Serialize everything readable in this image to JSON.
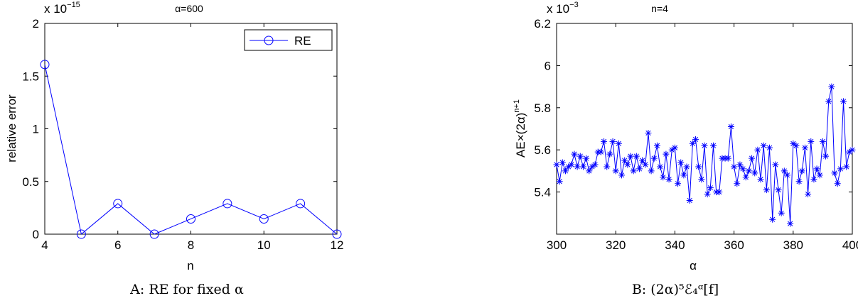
{
  "chart_data": [
    {
      "type": "line",
      "title": "α=600",
      "xlabel": "n",
      "ylabel": "relative error",
      "xlim": [
        4,
        12
      ],
      "ylim": [
        0,
        2
      ],
      "y_scale_label": "x 10",
      "y_scale_exp": "−15",
      "xticks": [
        "4",
        "6",
        "8",
        "10",
        "12"
      ],
      "yticks": [
        "0",
        "0.5",
        "1",
        "1.5",
        "2"
      ],
      "legend": {
        "label": "RE",
        "position": "top-right"
      },
      "marker": "circle",
      "color": "#0000ff",
      "series": [
        {
          "name": "RE",
          "x": [
            4,
            5,
            6,
            7,
            8,
            9,
            10,
            11,
            12
          ],
          "y": [
            1.61,
            0,
            0.29,
            0,
            0.145,
            0.29,
            0.145,
            0.29,
            0
          ]
        }
      ],
      "caption": "A:  RE for fixed α"
    },
    {
      "type": "line",
      "title": "n=4",
      "xlabel": "α",
      "ylabel": "AE×(2α)",
      "ylabel_sup": "n+1",
      "xlim": [
        300,
        400
      ],
      "ylim": [
        5.2,
        6.2
      ],
      "y_scale_label": "x 10",
      "y_scale_exp": "−3",
      "xticks": [
        "300",
        "320",
        "340",
        "360",
        "380",
        "400"
      ],
      "yticks": [
        "5.4",
        "5.6",
        "5.8",
        "6",
        "6.2"
      ],
      "marker": "asterisk",
      "color": "#0000ff",
      "series": [
        {
          "x": [
            300,
            301,
            302,
            303,
            304,
            305,
            306,
            307,
            308,
            309,
            310,
            311,
            312,
            313,
            314,
            315,
            316,
            317,
            318,
            319,
            320,
            321,
            322,
            323,
            324,
            325,
            326,
            327,
            328,
            329,
            330,
            331,
            332,
            333,
            334,
            335,
            336,
            337,
            338,
            339,
            340,
            341,
            342,
            343,
            344,
            345,
            346,
            347,
            348,
            349,
            350,
            351,
            352,
            353,
            354,
            355,
            356,
            357,
            358,
            359,
            360,
            361,
            362,
            363,
            364,
            365,
            366,
            367,
            368,
            369,
            370,
            371,
            372,
            373,
            374,
            375,
            376,
            377,
            378,
            379,
            380,
            381,
            382,
            383,
            384,
            385,
            386,
            387,
            388,
            389,
            390,
            391,
            392,
            393,
            394,
            395,
            396,
            397,
            398,
            399,
            400
          ],
          "y": [
            5.53,
            5.45,
            5.54,
            5.5,
            5.52,
            5.53,
            5.58,
            5.52,
            5.57,
            5.52,
            5.56,
            5.5,
            5.52,
            5.53,
            5.59,
            5.59,
            5.64,
            5.52,
            5.58,
            5.64,
            5.5,
            5.63,
            5.48,
            5.55,
            5.53,
            5.57,
            5.5,
            5.57,
            5.51,
            5.55,
            5.53,
            5.68,
            5.5,
            5.56,
            5.62,
            5.52,
            5.47,
            5.58,
            5.46,
            5.6,
            5.61,
            5.44,
            5.54,
            5.48,
            5.52,
            5.36,
            5.63,
            5.65,
            5.52,
            5.46,
            5.62,
            5.39,
            5.42,
            5.62,
            5.4,
            5.4,
            5.56,
            5.56,
            5.56,
            5.71,
            5.52,
            5.44,
            5.53,
            5.51,
            5.47,
            5.5,
            5.56,
            5.49,
            5.6,
            5.46,
            5.62,
            5.41,
            5.61,
            5.27,
            5.53,
            5.41,
            5.3,
            5.5,
            5.48,
            5.25,
            5.63,
            5.62,
            5.45,
            5.5,
            5.61,
            5.39,
            5.64,
            5.46,
            5.51,
            5.48,
            5.64,
            5.57,
            5.83,
            5.9,
            5.49,
            5.44,
            5.51,
            5.83,
            5.52,
            5.59,
            5.6
          ]
        }
      ],
      "caption": "B:  (2α)⁵ℰ₄ᵅ[f]"
    }
  ]
}
